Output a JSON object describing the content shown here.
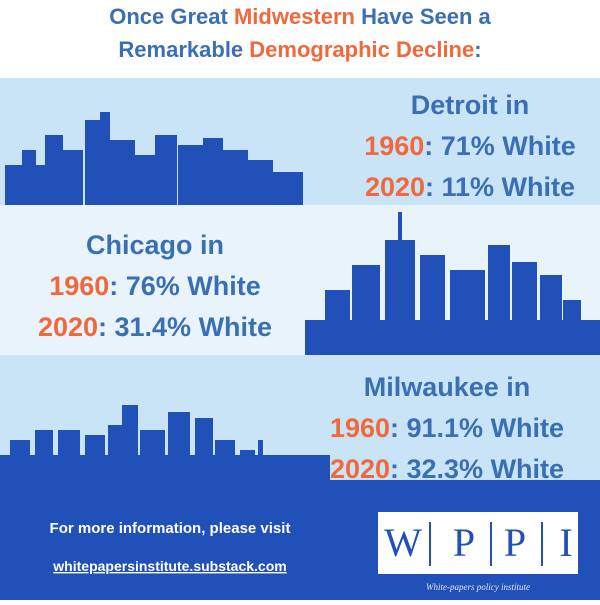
{
  "header": {
    "line1": [
      "Once Great ",
      "Midwestern",
      " Have Seen a"
    ],
    "line2": [
      "Remarkable ",
      "Demographic Decline",
      ":"
    ]
  },
  "sections": [
    {
      "city": "Detroit in",
      "rows": [
        {
          "year": "1960",
          "text": ": 71% White"
        },
        {
          "year": "2020",
          "text": ": 11% White"
        }
      ]
    },
    {
      "city": "Chicago in",
      "rows": [
        {
          "year": "1960",
          "text": ": 76% White"
        },
        {
          "year": "2020",
          "text": ": 31.4% White"
        }
      ]
    },
    {
      "city": "Milwaukee in",
      "rows": [
        {
          "year": "1960",
          "text": ": 91.1% White"
        },
        {
          "year": "2020",
          "text": ": 32.3% White"
        }
      ]
    }
  ],
  "footer": {
    "prompt": "For more information, please visit",
    "link": "whitepapersinstitute.substack.com"
  },
  "logo": {
    "letters": [
      "W",
      "P",
      "P",
      "I"
    ],
    "caption": "White-papers policy institute"
  }
}
